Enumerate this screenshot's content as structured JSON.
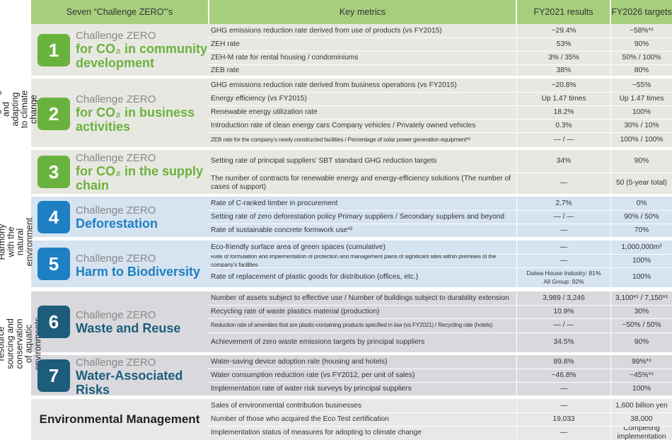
{
  "header": {
    "col1": "Seven “Challenge ZERO”’s",
    "col2": "Key metrics",
    "col3": "FY2021 results",
    "col4": "FY2026 targets"
  },
  "colors": {
    "header_bg": "#a6cf7d",
    "green_band": "#e8e8e2",
    "blue_band": "#d6e3f0",
    "gray_band": "#d9d9dd",
    "green_text": "#6ab23e",
    "blue_text": "#1e7fc2",
    "navy_text": "#1d5c7b"
  },
  "categories": [
    {
      "label": "Mitigating and adapting\nto climate change"
    },
    {
      "label": "Harmony with the\nnatural environment"
    },
    {
      "label": "Closed-loop resource\nsourcing and conservation\nof aquatic environments"
    }
  ],
  "challenges": [
    {
      "number": "1",
      "line1": "Challenge ZERO",
      "line2": "for CO₂ in community\ndevelopment",
      "rows": [
        {
          "metric": "GHG emissions reduction rate derived from use of products (vs FY2015)",
          "result": "−29.4%",
          "target": "−58%*¹"
        },
        {
          "metric": "ZEH rate",
          "result": "53%",
          "target": "90%"
        },
        {
          "metric": "ZEH-M rate for rental housing / condominiums",
          "result": "3% / 35%",
          "target": "50% / 100%"
        },
        {
          "metric": "ZEB rate",
          "result": "38%",
          "target": "80%"
        }
      ]
    },
    {
      "number": "2",
      "line1": "Challenge ZERO",
      "line2": "for CO₂ in business\nactivities",
      "rows": [
        {
          "metric": "GHG emissions reduction rate derived from business operations (vs FY2015)",
          "result": "−20.8%",
          "target": "−55%"
        },
        {
          "metric": "Energy efficiency (vs FY2015)",
          "result": "Up 1.47 times",
          "target": "Up 1.47 times"
        },
        {
          "metric": "Renewable energy utilization rate",
          "result": "18.2%",
          "target": "100%"
        },
        {
          "metric": "Introduction rate of clean energy cars Company vehicles / Privately owned vehicles",
          "result": "0.3%",
          "target": "30% / 10%"
        },
        {
          "metric": "ZEB rate for the company’s newly constructed facilities / Percentage of solar power generation equipment*²",
          "result": "— / —",
          "target": "100% / 100%"
        }
      ]
    },
    {
      "number": "3",
      "line1": "Challenge ZERO",
      "line2": "for CO₂ in the supply\nchain",
      "rows": [
        {
          "metric": "Setting rate of principal suppliers’ SBT standard GHG reduction targets",
          "result": "34%",
          "target": "90%"
        },
        {
          "metric": "The number of contracts for renewable energy and energy-efficiency solutions (The number of cases of support)",
          "result": "—",
          "target": "50 (5-year total)"
        }
      ]
    },
    {
      "number": "4",
      "line1": "Challenge ZERO",
      "line2": "Deforestation",
      "rows": [
        {
          "metric": "Rate of C-ranked timber in procurement",
          "result": "2.7%",
          "target": "0%"
        },
        {
          "metric": "Setting rate of zero deforestation policy Primary suppliers / Secondary suppliers and beyond",
          "result": "— / —",
          "target": "90% / 50%"
        },
        {
          "metric": "Rate of sustainable concrete formwork use*²",
          "result": "—",
          "target": "70%"
        }
      ]
    },
    {
      "number": "5",
      "line1": "Challenge ZERO",
      "line2": "Harm to Biodiversity",
      "rows": [
        {
          "metric": "Eco-friendly surface area of green spaces (cumulative)",
          "result": "—",
          "target": "1,000,000m²"
        },
        {
          "metric": "Rate of formulation and implementation of protection and management plans of significant sites within premises of the company’s facilities",
          "result": "—",
          "target": "100%"
        },
        {
          "metric": "Rate of replacement of plastic goods for distribution (offices, etc.)",
          "result": "Daiwa House Industry: 81%\nAll Group: 92%",
          "target": "100%"
        }
      ]
    },
    {
      "number": "6",
      "line1": "Challenge ZERO",
      "line2": "Waste and Reuse",
      "rows": [
        {
          "metric": "Number of assets subject to effective use / Number of buildings subject to durability extension",
          "result": "3,989 / 3,246",
          "target": "3,100*¹ / 7,150*¹"
        },
        {
          "metric": "Recycling rate of waste plastics material (production)",
          "result": "10.9%",
          "target": "30%"
        },
        {
          "metric": "Reduction rate of amenities that are plastic-containing products specified in law (vs FY2021) / Recycling rate (hotels)",
          "result": "— / —",
          "target": "−50% / 50%"
        },
        {
          "metric": "Achievement of zero waste emissions targets by principal suppliers",
          "result": "34.5%",
          "target": "90%"
        }
      ]
    },
    {
      "number": "7",
      "line1": "Challenge ZERO",
      "line2": "Water-Associated\nRisks",
      "rows": [
        {
          "metric": "Water-saving device adoption rate (housing and hotels)",
          "result": "89.8%",
          "target": "99%*¹"
        },
        {
          "metric": "Water consumption reduction rate (vs FY2012, per unit of sales)",
          "result": "−46.8%",
          "target": "−45%*¹"
        },
        {
          "metric": "Implementation rate of water risk surveys by principal suppliers",
          "result": "—",
          "target": "100%"
        }
      ]
    }
  ],
  "env": {
    "title": "Environmental Management",
    "rows": [
      {
        "metric": "Sales of environmental contribution businesses",
        "result": "—",
        "target": "1,600 billion yen"
      },
      {
        "metric": "Number of those who acquired the Eco Test certification",
        "result": "19,033",
        "target": "38,000"
      },
      {
        "metric": "Implementation status of measures for adopting to climate change",
        "result": "—",
        "target": "Completing implementation"
      }
    ]
  }
}
